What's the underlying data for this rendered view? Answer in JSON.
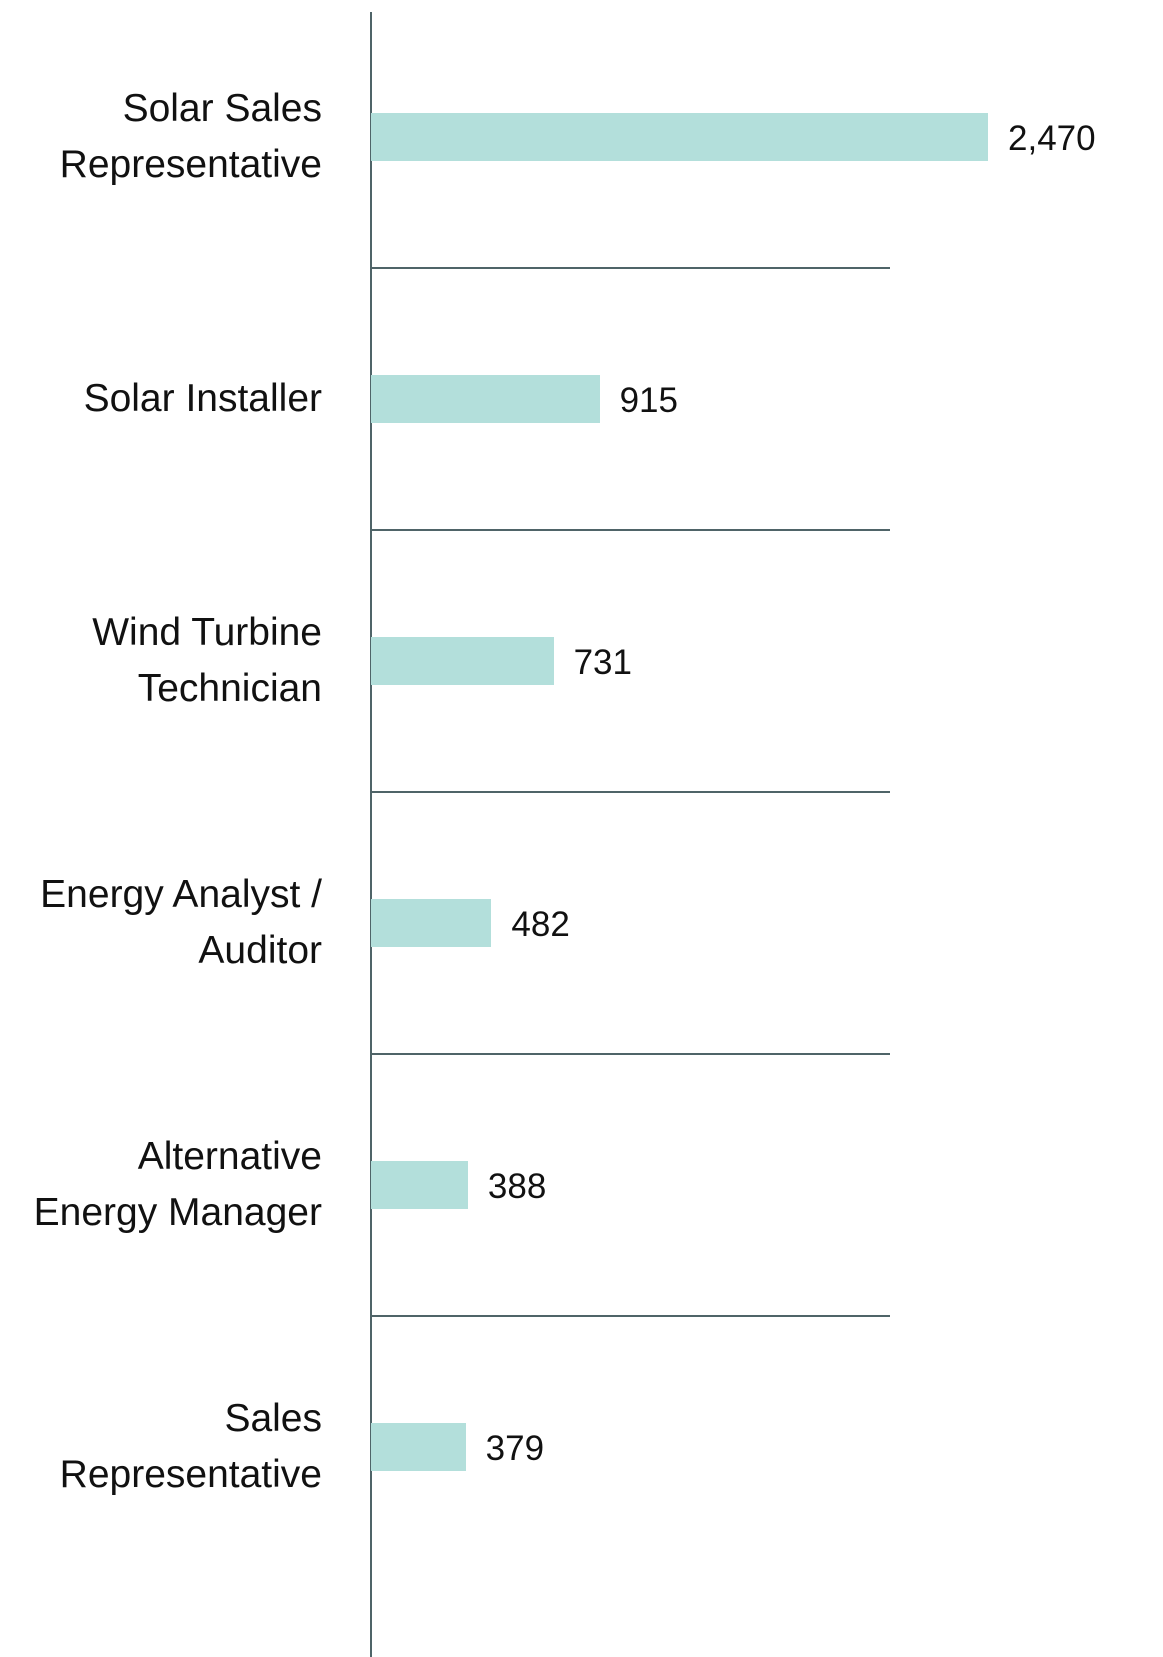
{
  "chart_data": {
    "type": "bar",
    "orientation": "horizontal",
    "categories": [
      "Solar Sales Representative",
      "Solar Installer",
      "Wind Turbine Technician",
      "Energy Analyst / Auditor",
      "Alternative Energy Manager",
      "Sales Representative"
    ],
    "values": [
      2470,
      915,
      731,
      482,
      388,
      379
    ],
    "value_labels": [
      "2,470",
      "915",
      "731",
      "482",
      "388",
      "379"
    ],
    "color": "#b3dfdb"
  }
}
